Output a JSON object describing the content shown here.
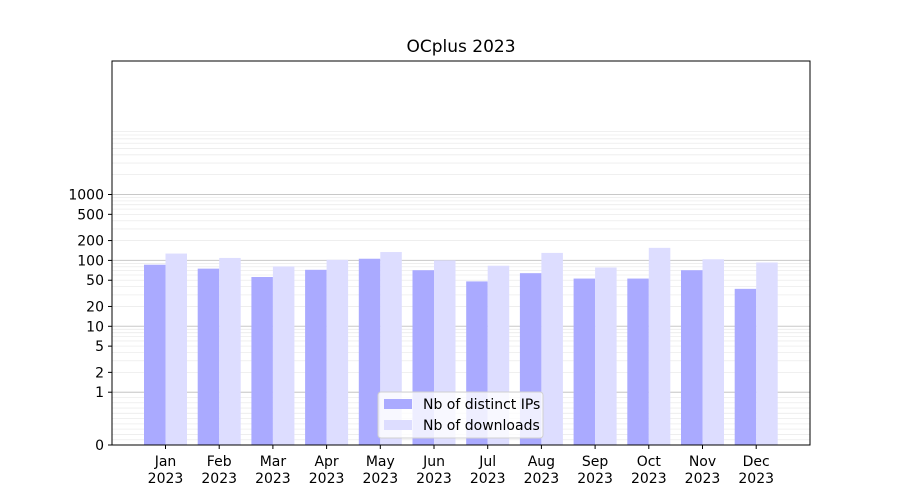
{
  "chart_data": {
    "type": "bar",
    "title": "OCplus 2023",
    "xlabel": "",
    "ylabel": "",
    "yscale": "symlog",
    "ylim": [
      0,
      1300
    ],
    "grid": true,
    "legend_placement": "bottom-center",
    "categories": [
      [
        "Jan",
        "2023"
      ],
      [
        "Feb",
        "2023"
      ],
      [
        "Mar",
        "2023"
      ],
      [
        "Apr",
        "2023"
      ],
      [
        "May",
        "2023"
      ],
      [
        "Jun",
        "2023"
      ],
      [
        "Jul",
        "2023"
      ],
      [
        "Aug",
        "2023"
      ],
      [
        "Sep",
        "2023"
      ],
      [
        "Oct",
        "2023"
      ],
      [
        "Nov",
        "2023"
      ],
      [
        "Dec",
        "2023"
      ]
    ],
    "y_ticks": [
      {
        "value": 0,
        "label": "0"
      },
      {
        "value": 1,
        "label": "1"
      },
      {
        "value": 2,
        "label": "2"
      },
      {
        "value": 5,
        "label": "5"
      },
      {
        "value": 10,
        "label": "10"
      },
      {
        "value": 20,
        "label": "20"
      },
      {
        "value": 50,
        "label": "50"
      },
      {
        "value": 100,
        "label": "100"
      },
      {
        "value": 200,
        "label": "200"
      },
      {
        "value": 500,
        "label": "500"
      },
      {
        "value": 1000,
        "label": "1000"
      }
    ],
    "series": [
      {
        "name": "Nb of distinct IPs",
        "color": "#aaaaff",
        "values": [
          86,
          75,
          56,
          72,
          106,
          71,
          48,
          64,
          53,
          53,
          71,
          37
        ]
      },
      {
        "name": "Nb of downloads",
        "color": "#ddddff",
        "values": [
          127,
          109,
          81,
          102,
          134,
          100,
          83,
          130,
          78,
          155,
          104,
          93
        ]
      }
    ]
  }
}
